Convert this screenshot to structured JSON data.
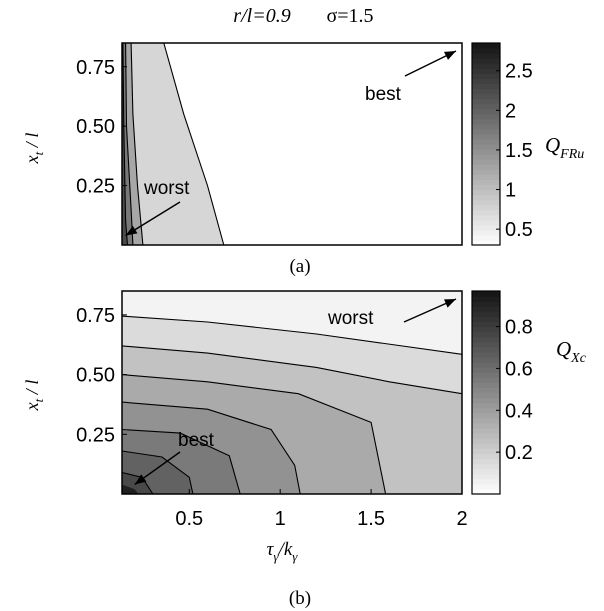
{
  "header": {
    "param_ratio": "r/l=0.9",
    "param_sigma": "σ=1.5"
  },
  "chart_data": [
    {
      "type": "heatmap",
      "panel_label": "(a)",
      "xlabel": "",
      "ylabel": "x_t / l",
      "xlim": [
        0.13,
        2.0
      ],
      "ylim": [
        0.0,
        0.85
      ],
      "yticks": [
        0.25,
        0.5,
        0.75
      ],
      "ytick_labels": [
        "0.25",
        "0.50",
        "0.75"
      ],
      "xtick_labels": [],
      "colorbar": {
        "label": "Q_FRu",
        "range": [
          0.3,
          2.85
        ],
        "ticks": [
          0.5,
          1,
          1.5,
          2,
          2.5
        ],
        "tick_labels": [
          "0.5",
          "1",
          "1.5",
          "2",
          "2.5"
        ],
        "colormap": "gray_reversed"
      },
      "contour_levels": [
        0.5,
        1.0,
        1.5,
        2.0
      ],
      "contours": [
        {
          "level": 0.5,
          "points": [
            [
              0.36,
              0.85
            ],
            [
              0.47,
              0.55
            ],
            [
              0.6,
              0.25
            ],
            [
              0.69,
              0.0
            ]
          ]
        },
        {
          "level": 1.0,
          "points": [
            [
              0.18,
              0.85
            ],
            [
              0.19,
              0.55
            ],
            [
              0.215,
              0.25
            ],
            [
              0.245,
              0.0
            ]
          ]
        },
        {
          "level": 1.5,
          "points": [
            [
              0.15,
              0.85
            ],
            [
              0.155,
              0.5
            ],
            [
              0.18,
              0.15
            ],
            [
              0.19,
              0.0
            ]
          ]
        },
        {
          "level": 2.0,
          "points": [
            [
              0.135,
              0.85
            ],
            [
              0.14,
              0.5
            ],
            [
              0.15,
              0.1
            ],
            [
              0.16,
              0.0
            ]
          ]
        }
      ],
      "annotations": [
        {
          "text": "best",
          "arrow_to": [
            2.0,
            0.85
          ]
        },
        {
          "text": "worst",
          "arrow_to": [
            0.15,
            0.04
          ]
        }
      ]
    },
    {
      "type": "heatmap",
      "panel_label": "(b)",
      "xlabel": "τ_γ / k_γ",
      "ylabel": "x_t / l",
      "xlim": [
        0.13,
        2.0
      ],
      "ylim": [
        0.0,
        0.85
      ],
      "xticks": [
        0.5,
        1,
        1.5,
        2
      ],
      "xtick_labels": [
        "0.5",
        "1",
        "1.5",
        "2"
      ],
      "yticks": [
        0.25,
        0.5,
        0.75
      ],
      "ytick_labels": [
        "0.25",
        "0.50",
        "0.75"
      ],
      "colorbar": {
        "label": "Q_Xc",
        "range": [
          0.0,
          0.97
        ],
        "ticks": [
          0.2,
          0.4,
          0.6,
          0.8
        ],
        "tick_labels": [
          "0.2",
          "0.4",
          "0.6",
          "0.8"
        ],
        "colormap": "gray_reversed"
      },
      "contour_levels": [
        0.1,
        0.2,
        0.3,
        0.4,
        0.5,
        0.6,
        0.7
      ],
      "contours": [
        {
          "level": 0.1,
          "points": [
            [
              0.13,
              0.745
            ],
            [
              0.6,
              0.72
            ],
            [
              1.2,
              0.67
            ],
            [
              2.0,
              0.585
            ]
          ]
        },
        {
          "level": 0.2,
          "points": [
            [
              0.13,
              0.62
            ],
            [
              0.6,
              0.59
            ],
            [
              1.2,
              0.53
            ],
            [
              1.6,
              0.47
            ],
            [
              2.0,
              0.42
            ]
          ]
        },
        {
          "level": 0.3,
          "points": [
            [
              0.13,
              0.5
            ],
            [
              0.6,
              0.47
            ],
            [
              1.1,
              0.42
            ],
            [
              1.5,
              0.3
            ],
            [
              1.58,
              0.0
            ]
          ]
        },
        {
          "level": 0.4,
          "points": [
            [
              0.13,
              0.385
            ],
            [
              0.6,
              0.355
            ],
            [
              0.95,
              0.27
            ],
            [
              1.08,
              0.12
            ],
            [
              1.11,
              0.0
            ]
          ]
        },
        {
          "level": 0.5,
          "points": [
            [
              0.13,
              0.27
            ],
            [
              0.45,
              0.255
            ],
            [
              0.72,
              0.16
            ],
            [
              0.78,
              0.0
            ]
          ]
        },
        {
          "level": 0.6,
          "points": [
            [
              0.13,
              0.18
            ],
            [
              0.35,
              0.155
            ],
            [
              0.5,
              0.07
            ],
            [
              0.52,
              0.0
            ]
          ]
        },
        {
          "level": 0.7,
          "points": [
            [
              0.13,
              0.09
            ],
            [
              0.24,
              0.07
            ],
            [
              0.3,
              0.0
            ]
          ]
        }
      ],
      "annotations": [
        {
          "text": "worst",
          "arrow_to": [
            2.0,
            0.85
          ]
        },
        {
          "text": "best",
          "arrow_to": [
            0.2,
            0.04
          ]
        }
      ]
    }
  ]
}
